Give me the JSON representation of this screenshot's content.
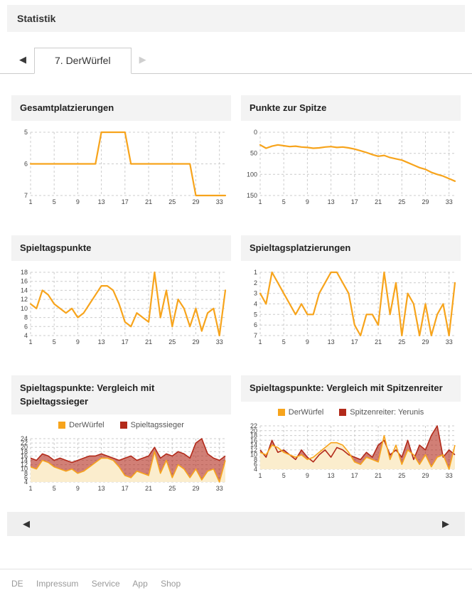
{
  "header": {
    "title": "Statistik"
  },
  "tabs": {
    "prev_arrow": "◀",
    "active_label": "7. DerWürfel",
    "next_arrow": "▶"
  },
  "pager": {
    "prev": "◀",
    "next": "▶"
  },
  "footer": {
    "links": [
      "DE",
      "Impressum",
      "Service",
      "App",
      "Shop"
    ]
  },
  "colors": {
    "accent_orange": "#F7A41C",
    "orange_fill": "#FBEDCD",
    "dark_red": "#B22A1A",
    "grid": "#CCCCCC",
    "panel_header_bg": "#F3F3F3"
  },
  "chart_data": [
    {
      "title": "Gesamtplatzierungen",
      "type": "line",
      "x_ticks": [
        1,
        5,
        9,
        13,
        17,
        21,
        25,
        29,
        33
      ],
      "n_days": 34,
      "y_ticks": [
        5,
        6,
        7
      ],
      "y_inverted": true,
      "grid": true,
      "series": [
        {
          "name": "DerWürfel",
          "color": "#F7A41C",
          "values": [
            6,
            6,
            6,
            6,
            6,
            6,
            6,
            6,
            6,
            6,
            6,
            6,
            5,
            5,
            5,
            5,
            5,
            6,
            6,
            6,
            6,
            6,
            6,
            6,
            6,
            6,
            6,
            6,
            7,
            7,
            7,
            7,
            7,
            7
          ]
        }
      ]
    },
    {
      "title": "Punkte zur Spitze",
      "type": "line",
      "x_ticks": [
        1,
        5,
        9,
        13,
        17,
        21,
        25,
        29,
        33
      ],
      "n_days": 34,
      "y_ticks": [
        0,
        50,
        100,
        150
      ],
      "y_inverted": true,
      "grid": true,
      "series": [
        {
          "name": "DerWürfel",
          "color": "#F7A41C",
          "values": [
            30,
            38,
            33,
            30,
            32,
            34,
            33,
            35,
            36,
            38,
            37,
            35,
            34,
            36,
            35,
            37,
            40,
            44,
            48,
            53,
            57,
            55,
            60,
            63,
            66,
            72,
            78,
            84,
            88,
            95,
            100,
            104,
            110,
            116
          ]
        }
      ]
    },
    {
      "title": "Spieltagspunkte",
      "type": "line",
      "x_ticks": [
        1,
        5,
        9,
        13,
        17,
        21,
        25,
        29,
        33
      ],
      "n_days": 34,
      "y_ticks": [
        4,
        6,
        8,
        10,
        12,
        14,
        16,
        18
      ],
      "y_inverted": false,
      "grid": true,
      "series": [
        {
          "name": "DerWürfel",
          "color": "#F7A41C",
          "values": [
            11,
            10,
            14,
            13,
            11,
            10,
            9,
            10,
            8,
            9,
            11,
            13,
            15,
            15,
            14,
            11,
            7,
            6,
            9,
            8,
            7,
            18,
            8,
            14,
            6,
            12,
            10,
            6,
            10,
            5,
            9,
            10,
            4,
            14
          ]
        }
      ]
    },
    {
      "title": "Spieltagsplatzierungen",
      "type": "line",
      "x_ticks": [
        1,
        5,
        9,
        13,
        17,
        21,
        25,
        29,
        33
      ],
      "n_days": 34,
      "y_ticks": [
        1,
        2,
        3,
        4,
        5,
        6,
        7
      ],
      "y_inverted": true,
      "grid": true,
      "series": [
        {
          "name": "DerWürfel",
          "color": "#F7A41C",
          "values": [
            3,
            4,
            1,
            2,
            3,
            4,
            5,
            4,
            5,
            5,
            3,
            2,
            1,
            1,
            2,
            3,
            6,
            7,
            5,
            5,
            6,
            1,
            5,
            2,
            7,
            3,
            4,
            7,
            4,
            7,
            5,
            4,
            7,
            2
          ]
        }
      ]
    },
    {
      "title": "Spieltagspunkte: Vergleich mit Spieltagssieger",
      "type": "area",
      "x_ticks": [
        1,
        5,
        9,
        13,
        17,
        21,
        25,
        29,
        33
      ],
      "n_days": 34,
      "y_ticks": [
        4,
        6,
        8,
        10,
        12,
        14,
        16,
        18,
        20,
        22,
        24
      ],
      "y_inverted": false,
      "grid": true,
      "legend_position": "top",
      "legend": [
        {
          "label": "DerWürfel",
          "color": "#F7A41C"
        },
        {
          "label": "Spieltagssieger",
          "color": "#B22A1A"
        }
      ],
      "series": [
        {
          "name": "DerWürfel",
          "color": "#F7A41C",
          "fill": "#FBEDCD",
          "values": [
            11,
            10,
            14,
            13,
            11,
            10,
            9,
            10,
            8,
            9,
            11,
            13,
            15,
            15,
            14,
            11,
            7,
            6,
            9,
            8,
            7,
            18,
            8,
            14,
            6,
            12,
            10,
            6,
            10,
            5,
            9,
            10,
            4,
            14
          ]
        },
        {
          "name": "Spieltagssieger",
          "color": "#B22A1A",
          "fill": "rgba(178,42,26,0.6)",
          "values": [
            15,
            14,
            17,
            16,
            14,
            15,
            14,
            13,
            14,
            15,
            16,
            16,
            17,
            16,
            15,
            14,
            15,
            16,
            14,
            15,
            16,
            20,
            15,
            17,
            16,
            18,
            17,
            15,
            22,
            24,
            17,
            15,
            14,
            16
          ]
        }
      ]
    },
    {
      "title": "Spieltagspunkte: Vergleich mit Spitzenreiter",
      "type": "area",
      "x_ticks": [
        1,
        5,
        9,
        13,
        17,
        21,
        25,
        29,
        33
      ],
      "n_days": 34,
      "y_ticks": [
        4,
        6,
        8,
        10,
        12,
        14,
        16,
        18,
        20,
        22
      ],
      "y_inverted": false,
      "grid": true,
      "legend_position": "top",
      "legend": [
        {
          "label": "DerWürfel",
          "color": "#F7A41C"
        },
        {
          "label": "Spitzenreiter: Yerunis",
          "color": "#B22A1A"
        }
      ],
      "series": [
        {
          "name": "DerWürfel",
          "color": "#F7A41C",
          "fill": "#FBEDCD",
          "values": [
            11,
            10,
            14,
            13,
            11,
            10,
            9,
            10,
            8,
            9,
            11,
            13,
            15,
            15,
            14,
            11,
            7,
            6,
            9,
            8,
            7,
            18,
            8,
            14,
            6,
            12,
            10,
            6,
            10,
            5,
            9,
            10,
            4,
            14
          ]
        },
        {
          "name": "Spitzenreiter: Yerunis",
          "color": "#B22A1A",
          "fill": "rgba(178,42,26,0.6)",
          "values": [
            12,
            9,
            16,
            11,
            12,
            10,
            8,
            12,
            9,
            7,
            10,
            12,
            9,
            13,
            12,
            10,
            9,
            8,
            11,
            9,
            14,
            16,
            10,
            12,
            9,
            16,
            8,
            14,
            12,
            18,
            22,
            9,
            12,
            10
          ]
        }
      ]
    }
  ]
}
